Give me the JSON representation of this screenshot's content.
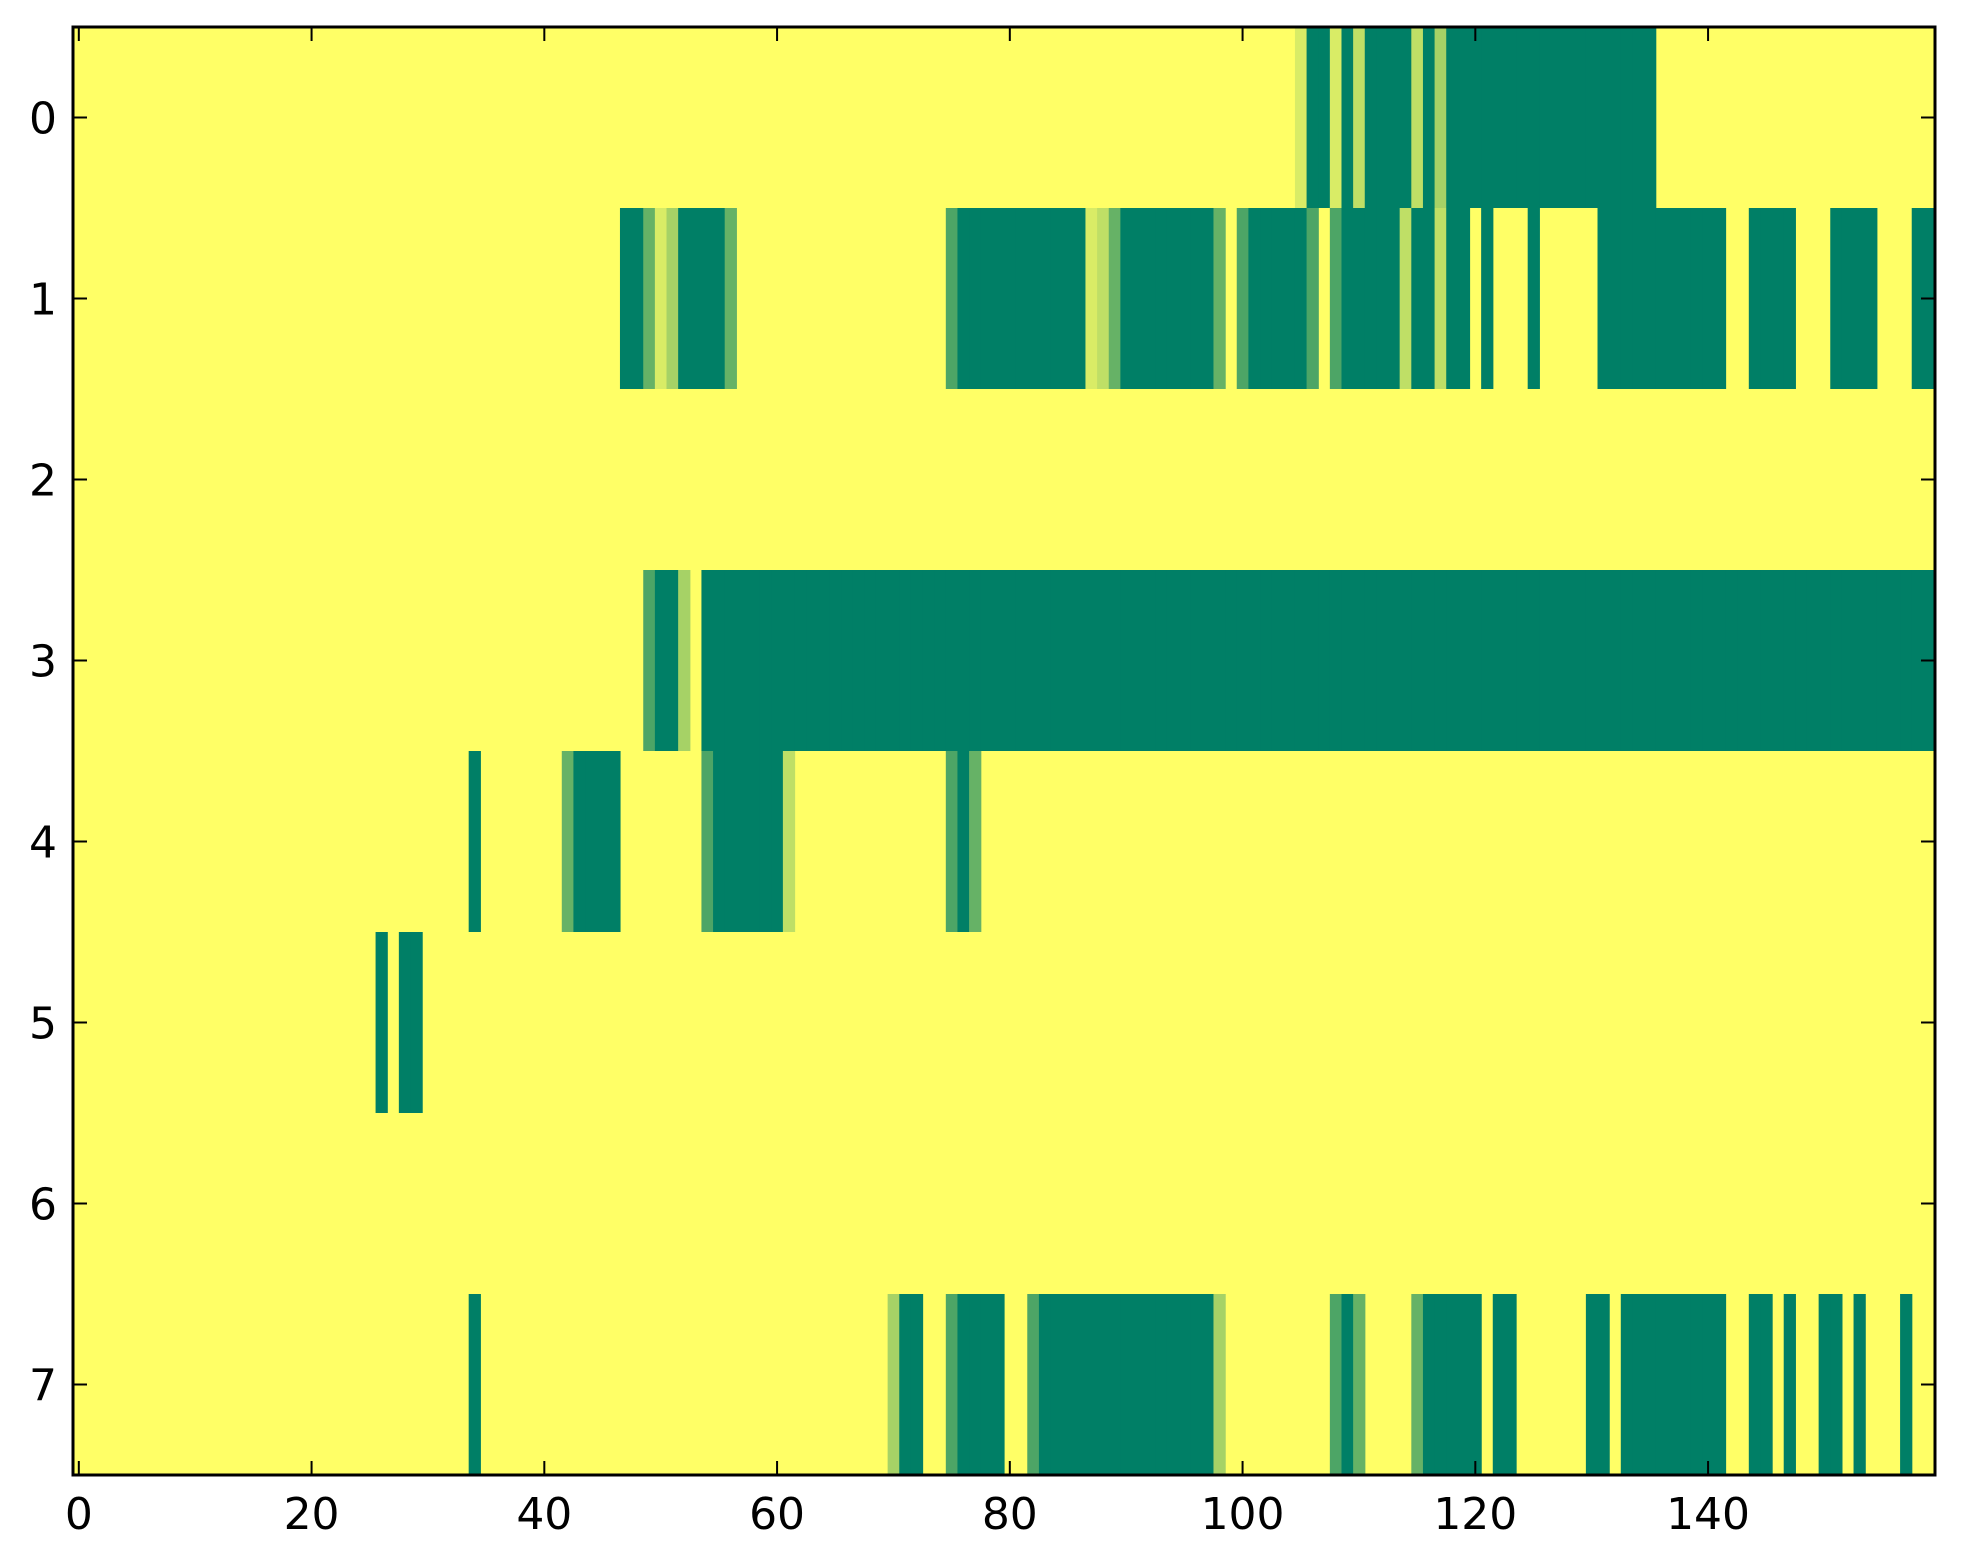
{
  "chart_data": {
    "type": "heatmap",
    "title": "",
    "xlabel": "",
    "ylabel": "",
    "n_columns": 160,
    "n_rows": 8,
    "xlim": [
      -0.5,
      159.5
    ],
    "ylim": [
      7.5,
      -0.5
    ],
    "xticks": [
      0,
      20,
      40,
      60,
      80,
      100,
      120,
      140
    ],
    "xtick_labels": [
      "0",
      "20",
      "40",
      "60",
      "80",
      "100",
      "120",
      "140"
    ],
    "yticks": [
      0,
      1,
      2,
      3,
      4,
      5,
      6,
      7
    ],
    "ytick_labels": [
      "0",
      "1",
      "2",
      "3",
      "4",
      "5",
      "6",
      "7"
    ],
    "grid": false,
    "colormap": "summer_r",
    "color_scale": [
      "#FFFF66",
      "#D9EC66",
      "#4CA666",
      "#007F66"
    ],
    "background_value": 0,
    "value_scale": "0 = yellow (#FFFF66) to 1 = dark green (#007F66)",
    "rows": [
      {
        "row": 0,
        "cells": [
          [
            105,
            0.15
          ],
          [
            106,
            1
          ],
          [
            107,
            1
          ],
          [
            108,
            0.15
          ],
          [
            109,
            1
          ],
          [
            110,
            0.25
          ],
          [
            111,
            1
          ],
          [
            112,
            1
          ],
          [
            113,
            1
          ],
          [
            114,
            1
          ],
          [
            115,
            0.25
          ],
          [
            116,
            1
          ],
          [
            117,
            0.35
          ],
          [
            118,
            1
          ],
          [
            119,
            1
          ],
          [
            120,
            1
          ],
          [
            121,
            1
          ],
          [
            122,
            1
          ],
          [
            123,
            1
          ],
          [
            124,
            1
          ],
          [
            125,
            1
          ],
          [
            126,
            1
          ],
          [
            127,
            1
          ],
          [
            128,
            1
          ],
          [
            129,
            1
          ],
          [
            130,
            1
          ],
          [
            131,
            1
          ],
          [
            132,
            1
          ],
          [
            133,
            1
          ],
          [
            134,
            1
          ],
          [
            135,
            1
          ]
        ]
      },
      {
        "row": 1,
        "cells": [
          [
            47,
            1
          ],
          [
            48,
            1
          ],
          [
            49,
            0.6
          ],
          [
            50,
            0.15
          ],
          [
            51,
            0.35
          ],
          [
            52,
            1
          ],
          [
            53,
            1
          ],
          [
            54,
            1
          ],
          [
            55,
            1
          ],
          [
            56,
            0.6
          ],
          [
            75,
            0.7
          ],
          [
            76,
            1
          ],
          [
            77,
            1
          ],
          [
            78,
            1
          ],
          [
            79,
            1
          ],
          [
            80,
            1
          ],
          [
            81,
            1
          ],
          [
            82,
            1
          ],
          [
            83,
            1
          ],
          [
            84,
            1
          ],
          [
            85,
            1
          ],
          [
            86,
            1
          ],
          [
            87,
            0.15
          ],
          [
            88,
            0.25
          ],
          [
            89,
            0.6
          ],
          [
            90,
            1
          ],
          [
            91,
            1
          ],
          [
            92,
            1
          ],
          [
            93,
            1
          ],
          [
            94,
            1
          ],
          [
            95,
            1
          ],
          [
            96,
            1
          ],
          [
            97,
            1
          ],
          [
            98,
            0.6
          ],
          [
            100,
            0.7
          ],
          [
            101,
            1
          ],
          [
            102,
            1
          ],
          [
            103,
            1
          ],
          [
            104,
            1
          ],
          [
            105,
            1
          ],
          [
            106,
            0.7
          ],
          [
            108,
            0.7
          ],
          [
            109,
            1
          ],
          [
            110,
            1
          ],
          [
            111,
            1
          ],
          [
            112,
            1
          ],
          [
            113,
            1
          ],
          [
            114,
            0.25
          ],
          [
            115,
            1
          ],
          [
            116,
            1
          ],
          [
            117,
            0.25
          ],
          [
            118,
            1
          ],
          [
            119,
            1
          ],
          [
            121,
            1
          ],
          [
            125,
            1
          ],
          [
            131,
            1
          ],
          [
            132,
            1
          ],
          [
            133,
            1
          ],
          [
            134,
            1
          ],
          [
            135,
            1
          ],
          [
            136,
            1
          ],
          [
            137,
            1
          ],
          [
            138,
            1
          ],
          [
            139,
            1
          ],
          [
            140,
            1
          ],
          [
            141,
            1
          ],
          [
            144,
            1
          ],
          [
            145,
            1
          ],
          [
            146,
            1
          ],
          [
            147,
            1
          ],
          [
            151,
            1
          ],
          [
            152,
            1
          ],
          [
            153,
            1
          ],
          [
            154,
            1
          ],
          [
            158,
            1
          ],
          [
            159,
            1
          ]
        ]
      },
      {
        "row": 2,
        "cells": []
      },
      {
        "row": 3,
        "cells": [
          [
            49,
            0.7
          ],
          [
            50,
            1
          ],
          [
            51,
            1
          ],
          [
            52,
            0.35
          ],
          [
            54,
            1
          ],
          [
            55,
            1
          ],
          [
            56,
            1
          ],
          [
            57,
            1
          ],
          [
            58,
            1
          ],
          [
            59,
            1
          ],
          [
            60,
            1
          ],
          [
            61,
            1
          ],
          [
            62,
            1
          ],
          [
            63,
            1
          ],
          [
            64,
            1
          ],
          [
            65,
            1
          ],
          [
            66,
            1
          ],
          [
            67,
            1
          ],
          [
            68,
            1
          ],
          [
            69,
            1
          ],
          [
            70,
            1
          ],
          [
            71,
            1
          ],
          [
            72,
            1
          ],
          [
            73,
            1
          ],
          [
            74,
            1
          ],
          [
            75,
            1
          ],
          [
            76,
            1
          ],
          [
            77,
            1
          ],
          [
            78,
            1
          ],
          [
            79,
            1
          ],
          [
            80,
            1
          ],
          [
            81,
            1
          ],
          [
            82,
            1
          ],
          [
            83,
            1
          ],
          [
            84,
            1
          ],
          [
            85,
            1
          ],
          [
            86,
            1
          ],
          [
            87,
            1
          ],
          [
            88,
            1
          ],
          [
            89,
            1
          ],
          [
            90,
            1
          ],
          [
            91,
            1
          ],
          [
            92,
            1
          ],
          [
            93,
            1
          ],
          [
            94,
            1
          ],
          [
            95,
            1
          ],
          [
            96,
            1
          ],
          [
            97,
            1
          ],
          [
            98,
            1
          ],
          [
            99,
            1
          ],
          [
            100,
            1
          ],
          [
            101,
            1
          ],
          [
            102,
            1
          ],
          [
            103,
            1
          ],
          [
            104,
            1
          ],
          [
            105,
            1
          ],
          [
            106,
            1
          ],
          [
            107,
            1
          ],
          [
            108,
            1
          ],
          [
            109,
            1
          ],
          [
            110,
            1
          ],
          [
            111,
            1
          ],
          [
            112,
            1
          ],
          [
            113,
            1
          ],
          [
            114,
            1
          ],
          [
            115,
            1
          ],
          [
            116,
            1
          ],
          [
            117,
            1
          ],
          [
            118,
            1
          ],
          [
            119,
            1
          ],
          [
            120,
            1
          ],
          [
            121,
            1
          ],
          [
            122,
            1
          ],
          [
            123,
            1
          ],
          [
            124,
            1
          ],
          [
            125,
            1
          ],
          [
            126,
            1
          ],
          [
            127,
            1
          ],
          [
            128,
            1
          ],
          [
            129,
            1
          ],
          [
            130,
            1
          ],
          [
            131,
            1
          ],
          [
            132,
            1
          ],
          [
            133,
            1
          ],
          [
            134,
            1
          ],
          [
            135,
            1
          ],
          [
            136,
            1
          ],
          [
            137,
            1
          ],
          [
            138,
            1
          ],
          [
            139,
            1
          ],
          [
            140,
            1
          ],
          [
            141,
            1
          ],
          [
            142,
            1
          ],
          [
            143,
            1
          ],
          [
            144,
            1
          ],
          [
            145,
            1
          ],
          [
            146,
            1
          ],
          [
            147,
            1
          ],
          [
            148,
            1
          ],
          [
            149,
            1
          ],
          [
            150,
            1
          ],
          [
            151,
            1
          ],
          [
            152,
            1
          ],
          [
            153,
            1
          ],
          [
            154,
            1
          ],
          [
            155,
            1
          ],
          [
            156,
            1
          ],
          [
            157,
            1
          ],
          [
            158,
            1
          ],
          [
            159,
            1
          ]
        ]
      },
      {
        "row": 4,
        "cells": [
          [
            34,
            1
          ],
          [
            42,
            0.6
          ],
          [
            43,
            1
          ],
          [
            44,
            1
          ],
          [
            45,
            1
          ],
          [
            46,
            1
          ],
          [
            54,
            0.7
          ],
          [
            55,
            1
          ],
          [
            56,
            1
          ],
          [
            57,
            1
          ],
          [
            58,
            1
          ],
          [
            59,
            1
          ],
          [
            60,
            1
          ],
          [
            61,
            0.25
          ],
          [
            75,
            0.7
          ],
          [
            76,
            1
          ],
          [
            77,
            0.6
          ]
        ]
      },
      {
        "row": 5,
        "cells": [
          [
            26,
            1
          ],
          [
            28,
            1
          ],
          [
            29,
            1
          ]
        ]
      },
      {
        "row": 6,
        "cells": []
      },
      {
        "row": 7,
        "cells": [
          [
            34,
            1
          ],
          [
            70,
            0.35
          ],
          [
            71,
            1
          ],
          [
            72,
            1
          ],
          [
            75,
            0.7
          ],
          [
            76,
            1
          ],
          [
            77,
            1
          ],
          [
            78,
            1
          ],
          [
            79,
            1
          ],
          [
            82,
            0.7
          ],
          [
            83,
            1
          ],
          [
            84,
            1
          ],
          [
            85,
            1
          ],
          [
            86,
            1
          ],
          [
            87,
            1
          ],
          [
            88,
            1
          ],
          [
            89,
            1
          ],
          [
            90,
            1
          ],
          [
            91,
            1
          ],
          [
            92,
            1
          ],
          [
            93,
            1
          ],
          [
            94,
            1
          ],
          [
            95,
            1
          ],
          [
            96,
            1
          ],
          [
            97,
            1
          ],
          [
            98,
            0.35
          ],
          [
            108,
            0.7
          ],
          [
            109,
            1
          ],
          [
            110,
            0.6
          ],
          [
            115,
            0.6
          ],
          [
            116,
            1
          ],
          [
            117,
            1
          ],
          [
            118,
            1
          ],
          [
            119,
            1
          ],
          [
            120,
            1
          ],
          [
            122,
            1
          ],
          [
            123,
            1
          ],
          [
            130,
            1
          ],
          [
            131,
            1
          ],
          [
            133,
            1
          ],
          [
            134,
            1
          ],
          [
            135,
            1
          ],
          [
            136,
            1
          ],
          [
            137,
            1
          ],
          [
            138,
            1
          ],
          [
            139,
            1
          ],
          [
            140,
            1
          ],
          [
            141,
            1
          ],
          [
            144,
            1
          ],
          [
            145,
            1
          ],
          [
            147,
            1
          ],
          [
            150,
            1
          ],
          [
            151,
            1
          ],
          [
            153,
            1
          ],
          [
            157,
            1
          ]
        ]
      }
    ]
  }
}
